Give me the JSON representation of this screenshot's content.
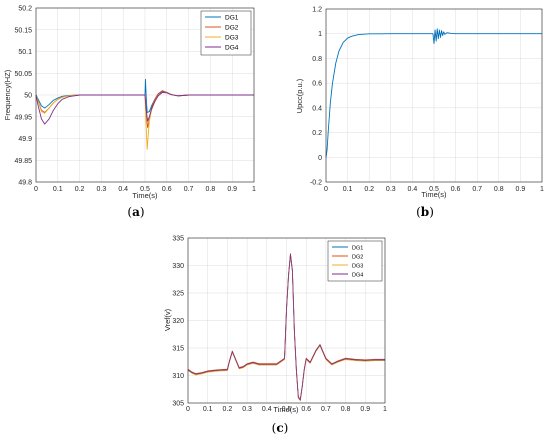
{
  "chart_data": [
    {
      "type": "line",
      "panel_label": {
        "open": "(",
        "letter": "a",
        "close": ")"
      },
      "xlabel": "Time(s)",
      "ylabel": "Frequency(HZ)",
      "xlim": [
        0,
        1
      ],
      "ylim": [
        49.8,
        50.2
      ],
      "xticks": [
        0,
        0.1,
        0.2,
        0.3,
        0.4,
        0.5,
        0.6,
        0.7,
        0.8,
        0.9,
        1
      ],
      "xtick_labels": [
        "0",
        "0.1",
        "0.2",
        "0.3",
        "0.4",
        "0.5",
        "0.6",
        "0.7",
        "0.8",
        "0.9",
        "1"
      ],
      "yticks": [
        49.8,
        49.85,
        49.9,
        49.95,
        50,
        50.05,
        50.1,
        50.15,
        50.2
      ],
      "ytick_labels": [
        "49.8",
        "49.85",
        "49.9",
        "49.95",
        "50",
        "50.05",
        "50.1",
        "50.15",
        "50.2"
      ],
      "grid": true,
      "legend_position": "top-right",
      "series": [
        {
          "name": "DG1",
          "color": "#0072BD",
          "x": [
            0,
            0.01,
            0.025,
            0.04,
            0.06,
            0.08,
            0.1,
            0.12,
            0.15,
            0.2,
            0.3,
            0.4,
            0.5,
            0.502,
            0.506,
            0.51,
            0.52,
            0.53,
            0.545,
            0.56,
            0.58,
            0.6,
            0.62,
            0.65,
            0.7,
            0.8,
            1
          ],
          "y": [
            50,
            49.99,
            49.975,
            49.97,
            49.978,
            49.988,
            49.993,
            49.997,
            49.999,
            50,
            50,
            50,
            50,
            50.036,
            49.99,
            49.96,
            49.962,
            49.975,
            49.99,
            50.002,
            50.008,
            50.006,
            50.001,
            49.998,
            50,
            50,
            50
          ]
        },
        {
          "name": "DG2",
          "color": "#D95319",
          "x": [
            0,
            0.01,
            0.025,
            0.04,
            0.06,
            0.08,
            0.1,
            0.12,
            0.15,
            0.2,
            0.3,
            0.4,
            0.5,
            0.505,
            0.512,
            0.52,
            0.53,
            0.545,
            0.56,
            0.58,
            0.6,
            0.62,
            0.65,
            0.7,
            0.8,
            1
          ],
          "y": [
            50,
            49.985,
            49.965,
            49.96,
            49.97,
            49.982,
            49.99,
            49.995,
            49.998,
            50,
            50,
            50,
            50,
            49.96,
            49.925,
            49.945,
            49.97,
            49.99,
            50.003,
            50.01,
            50.006,
            50.001,
            49.998,
            50,
            50,
            50
          ]
        },
        {
          "name": "DG3",
          "color": "#EDB120",
          "x": [
            0,
            0.01,
            0.025,
            0.04,
            0.06,
            0.08,
            0.1,
            0.12,
            0.15,
            0.2,
            0.3,
            0.4,
            0.5,
            0.505,
            0.51,
            0.515,
            0.52,
            0.53,
            0.545,
            0.56,
            0.58,
            0.6,
            0.62,
            0.65,
            0.7,
            0.8,
            1
          ],
          "y": [
            50,
            49.985,
            49.962,
            49.958,
            49.97,
            49.982,
            49.99,
            49.995,
            49.998,
            50,
            50,
            50,
            50,
            49.93,
            49.875,
            49.91,
            49.94,
            49.965,
            49.985,
            49.998,
            50.006,
            50.005,
            50.001,
            49.998,
            50,
            50,
            50
          ]
        },
        {
          "name": "DG4",
          "color": "#7E2F8E",
          "x": [
            0,
            0.01,
            0.025,
            0.04,
            0.06,
            0.08,
            0.1,
            0.12,
            0.15,
            0.2,
            0.3,
            0.4,
            0.5,
            0.505,
            0.512,
            0.52,
            0.53,
            0.545,
            0.56,
            0.58,
            0.6,
            0.62,
            0.65,
            0.7,
            0.8,
            1
          ],
          "y": [
            50,
            49.975,
            49.945,
            49.933,
            49.945,
            49.965,
            49.98,
            49.99,
            49.996,
            50,
            50,
            50,
            50,
            49.968,
            49.94,
            49.95,
            49.968,
            49.985,
            49.998,
            50.006,
            50.005,
            50.001,
            49.998,
            50,
            50,
            50
          ]
        }
      ]
    },
    {
      "type": "line",
      "panel_label": {
        "open": "(",
        "letter": "b",
        "close": ")"
      },
      "xlabel": "Time(s)",
      "ylabel": "Upcc(p.u.)",
      "xlim": [
        0,
        1
      ],
      "ylim": [
        -0.2,
        1.2
      ],
      "xticks": [
        0,
        0.1,
        0.2,
        0.3,
        0.4,
        0.5,
        0.6,
        0.7,
        0.8,
        0.9,
        1
      ],
      "xtick_labels": [
        "0",
        "0.1",
        "0.2",
        "0.3",
        "0.4",
        "0.5",
        "0.6",
        "0.7",
        "0.8",
        "0.9",
        "1"
      ],
      "yticks": [
        -0.2,
        0,
        0.2,
        0.4,
        0.6,
        0.8,
        1,
        1.2
      ],
      "ytick_labels": [
        "-0.2",
        "0",
        "0.2",
        "0.4",
        "0.6",
        "0.8",
        "1",
        "1.2"
      ],
      "grid": true,
      "series": [
        {
          "color": "#0072BD",
          "x": [
            0,
            0.005,
            0.01,
            0.02,
            0.03,
            0.045,
            0.06,
            0.08,
            0.1,
            0.12,
            0.15,
            0.2,
            0.3,
            0.4,
            0.495,
            0.5,
            0.505,
            0.51,
            0.515,
            0.52,
            0.525,
            0.53,
            0.535,
            0.54,
            0.545,
            0.55,
            0.56,
            0.58,
            0.6,
            0.7,
            1
          ],
          "y": [
            0,
            0.06,
            0.2,
            0.44,
            0.6,
            0.76,
            0.86,
            0.93,
            0.965,
            0.98,
            0.993,
            0.999,
            1,
            1,
            1,
            0.92,
            1.03,
            0.94,
            1.04,
            0.96,
            1.03,
            0.97,
            1.025,
            0.985,
            1.015,
            0.995,
            1.008,
            1.002,
            1,
            1,
            1
          ]
        }
      ]
    },
    {
      "type": "line",
      "panel_label": {
        "open": "(",
        "letter": "c",
        "close": ")"
      },
      "xlabel": "Time(s)",
      "ylabel": "Vref(v)",
      "xlim": [
        0,
        1
      ],
      "ylim": [
        305,
        335
      ],
      "xticks": [
        0,
        0.1,
        0.2,
        0.3,
        0.4,
        0.5,
        0.6,
        0.7,
        0.8,
        0.9,
        1
      ],
      "xtick_labels": [
        "0",
        "0.1",
        "0.2",
        "0.3",
        "0.4",
        "0.5",
        "0.6",
        "0.7",
        "0.8",
        "0.9",
        "1"
      ],
      "yticks": [
        305,
        310,
        315,
        320,
        325,
        330,
        335
      ],
      "ytick_labels": [
        "305",
        "310",
        "315",
        "320",
        "325",
        "330",
        "335"
      ],
      "grid": true,
      "legend_position": "top-right",
      "legend_names": [
        "DG1",
        "DG2",
        "DG3",
        "DG4"
      ],
      "series": [
        {
          "name": "DG1",
          "color": "#0072BD"
        },
        {
          "name": "DG2",
          "color": "#D95319"
        },
        {
          "name": "DG3",
          "color": "#EDB120"
        },
        {
          "name": "DG4",
          "color": "#7E2F8E"
        }
      ],
      "shared_curve": {
        "x": [
          0,
          0.02,
          0.04,
          0.07,
          0.1,
          0.15,
          0.2,
          0.21,
          0.225,
          0.24,
          0.26,
          0.28,
          0.3,
          0.33,
          0.36,
          0.4,
          0.45,
          0.49,
          0.5,
          0.51,
          0.52,
          0.53,
          0.54,
          0.55,
          0.56,
          0.57,
          0.58,
          0.59,
          0.6,
          0.62,
          0.65,
          0.67,
          0.7,
          0.73,
          0.76,
          0.8,
          0.85,
          0.9,
          0.95,
          1
        ],
        "y": [
          311,
          310.5,
          310.2,
          310.4,
          310.7,
          310.9,
          311,
          312.5,
          314.3,
          313,
          311.3,
          311.5,
          312,
          312.3,
          312,
          312,
          312,
          313,
          322,
          328,
          332,
          329,
          318,
          311,
          306,
          305.5,
          308,
          311,
          313,
          312.3,
          314.5,
          315.5,
          313,
          312,
          312.5,
          313,
          312.8,
          312.7,
          312.8,
          312.8
        ]
      }
    }
  ]
}
